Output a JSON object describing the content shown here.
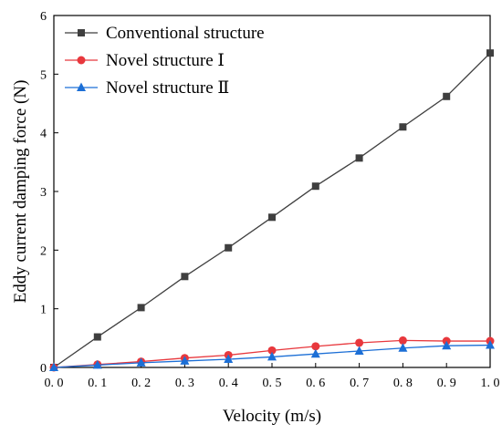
{
  "chart_data": {
    "type": "line",
    "x": [
      0.0,
      0.1,
      0.2,
      0.3,
      0.4,
      0.5,
      0.6,
      0.7,
      0.8,
      0.9,
      1.0
    ],
    "x_tick_labels": [
      "0. 0",
      "0. 1",
      "0. 2",
      "0. 3",
      "0. 4",
      "0. 5",
      "0. 6",
      "0. 7",
      "0. 8",
      "0. 9",
      "1. 0"
    ],
    "y_ticks": [
      0,
      1,
      2,
      3,
      4,
      5,
      6
    ],
    "y_tick_labels": [
      "0",
      "1",
      "2",
      "3",
      "4",
      "5",
      "6"
    ],
    "xlim": [
      0,
      1.0
    ],
    "ylim": [
      0,
      6
    ],
    "xlabel": "Velocity (m/s)",
    "ylabel": "Eddy current damping force (N)",
    "title": "",
    "grid": false,
    "legend_position": "top-left",
    "series": [
      {
        "name": "Conventional structure",
        "color": "#3f3f3f",
        "marker": "square",
        "values": [
          0.0,
          0.52,
          1.02,
          1.55,
          2.04,
          2.56,
          3.09,
          3.57,
          4.1,
          4.62,
          5.36
        ]
      },
      {
        "name": "Novel structure Ⅰ",
        "color": "#e8383d",
        "marker": "circle",
        "values": [
          0.0,
          0.05,
          0.1,
          0.16,
          0.21,
          0.29,
          0.36,
          0.42,
          0.46,
          0.45,
          0.45
        ]
      },
      {
        "name": "Novel structure Ⅱ",
        "color": "#1c6fd6",
        "marker": "triangle",
        "values": [
          0.0,
          0.04,
          0.08,
          0.11,
          0.14,
          0.18,
          0.23,
          0.28,
          0.33,
          0.37,
          0.38
        ]
      }
    ]
  }
}
